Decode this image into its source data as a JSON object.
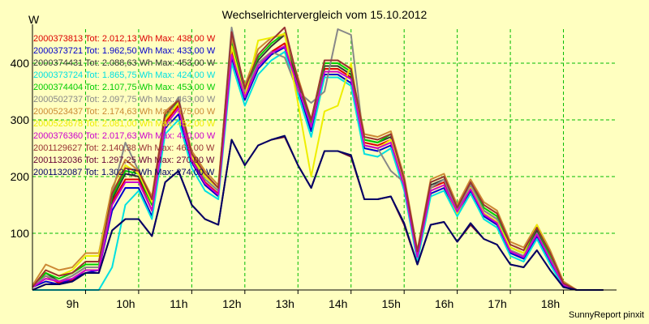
{
  "chart_data": {
    "type": "line",
    "title": "Wechselrichtervergleich vom 15.10.2012",
    "ylabel": "W",
    "footer": "SunnyReport pinxit",
    "ylim": [
      0,
      460
    ],
    "xlim": [
      8.0,
      19.0
    ],
    "yticks": [
      100,
      200,
      300,
      400
    ],
    "xticks": [
      {
        "v": 9,
        "label": "9h"
      },
      {
        "v": 10,
        "label": "10h"
      },
      {
        "v": 11,
        "label": "11h"
      },
      {
        "v": 12,
        "label": "12h"
      },
      {
        "v": 13,
        "label": "13h"
      },
      {
        "v": 14,
        "label": "14h"
      },
      {
        "v": 15,
        "label": "15h"
      },
      {
        "v": 16,
        "label": "16h"
      },
      {
        "v": 17,
        "label": "17h"
      },
      {
        "v": 18,
        "label": "18h"
      }
    ],
    "grid": true,
    "legend_position": "top-left",
    "x": [
      8.0,
      8.25,
      8.5,
      8.75,
      9.0,
      9.25,
      9.5,
      9.75,
      10.0,
      10.25,
      10.5,
      10.75,
      11.0,
      11.25,
      11.5,
      11.75,
      12.0,
      12.25,
      12.5,
      12.75,
      13.0,
      13.25,
      13.5,
      13.75,
      14.0,
      14.25,
      14.5,
      14.75,
      15.0,
      15.25,
      15.5,
      15.75,
      16.0,
      16.25,
      16.5,
      16.75,
      17.0,
      17.25,
      17.5,
      17.75,
      18.0,
      18.25,
      18.5,
      18.75
    ],
    "series": [
      {
        "name": "2000373813",
        "tot": "2.012,13 Wh",
        "max": "438,00 W",
        "color": "#dd0000",
        "values": [
          5,
          25,
          12,
          18,
          35,
          35,
          155,
          195,
          195,
          140,
          295,
          325,
          230,
          190,
          170,
          420,
          345,
          400,
          420,
          435,
          360,
          290,
          390,
          390,
          375,
          260,
          255,
          265,
          185,
          60,
          180,
          190,
          140,
          180,
          135,
          120,
          70,
          60,
          100,
          55,
          10,
          0,
          0,
          0
        ]
      },
      {
        "name": "2000373721",
        "tot": "1.962,50 Wh",
        "max": "433,00 W",
        "color": "#0000cc",
        "values": [
          5,
          15,
          10,
          20,
          30,
          35,
          140,
          180,
          180,
          130,
          285,
          310,
          225,
          185,
          165,
          410,
          335,
          390,
          415,
          428,
          355,
          280,
          380,
          380,
          365,
          250,
          245,
          255,
          180,
          55,
          170,
          180,
          135,
          175,
          130,
          115,
          65,
          55,
          95,
          50,
          8,
          0,
          0,
          0
        ]
      },
      {
        "name": "2000374431",
        "tot": "2.088,63 Wh",
        "max": "453,00 W",
        "color": "#333333",
        "values": [
          5,
          30,
          15,
          25,
          40,
          40,
          160,
          205,
          200,
          150,
          300,
          330,
          235,
          195,
          175,
          435,
          350,
          405,
          430,
          450,
          365,
          290,
          395,
          395,
          380,
          265,
          260,
          270,
          190,
          65,
          185,
          195,
          140,
          185,
          140,
          125,
          75,
          65,
          105,
          60,
          10,
          0,
          0,
          0
        ]
      },
      {
        "name": "2000373724",
        "tot": "1.865,75 Wh",
        "max": "424,00 W",
        "color": "#00e0e0",
        "values": [
          0,
          0,
          0,
          0,
          0,
          0,
          40,
          150,
          175,
          125,
          275,
          300,
          215,
          175,
          160,
          400,
          325,
          380,
          405,
          420,
          345,
          270,
          375,
          375,
          360,
          240,
          235,
          250,
          175,
          50,
          165,
          175,
          130,
          170,
          125,
          110,
          60,
          50,
          90,
          45,
          5,
          0,
          0,
          0
        ]
      },
      {
        "name": "2000374404",
        "tot": "2.107,75 Wh",
        "max": "453,00 W",
        "color": "#00cc00",
        "values": [
          5,
          30,
          20,
          30,
          45,
          45,
          165,
          210,
          205,
          150,
          305,
          335,
          240,
          200,
          180,
          440,
          355,
          410,
          435,
          453,
          370,
          295,
          400,
          400,
          385,
          265,
          260,
          275,
          195,
          65,
          190,
          200,
          145,
          190,
          145,
          130,
          75,
          65,
          110,
          60,
          12,
          0,
          0,
          0
        ]
      },
      {
        "name": "2000502737",
        "tot": "2.097,75 Wh",
        "max": "463,00 W",
        "color": "#888888",
        "values": [
          5,
          25,
          15,
          25,
          40,
          40,
          170,
          260,
          210,
          155,
          300,
          340,
          235,
          195,
          175,
          463,
          350,
          400,
          420,
          410,
          350,
          330,
          350,
          460,
          450,
          255,
          250,
          210,
          190,
          65,
          180,
          195,
          140,
          185,
          140,
          125,
          70,
          60,
          100,
          55,
          10,
          0,
          0,
          0
        ]
      },
      {
        "name": "2000523437",
        "tot": "2.174,63 Wh",
        "max": "475,00 W",
        "color": "#cc8833",
        "values": [
          8,
          45,
          35,
          40,
          65,
          65,
          180,
          230,
          210,
          165,
          315,
          335,
          245,
          210,
          185,
          445,
          360,
          425,
          445,
          450,
          375,
          300,
          405,
          405,
          390,
          275,
          270,
          280,
          200,
          70,
          195,
          205,
          150,
          195,
          155,
          140,
          85,
          75,
          115,
          70,
          15,
          0,
          0,
          0
        ]
      },
      {
        "name": "2000523678",
        "tot": "2.081,00 Wh",
        "max": "452,00 W",
        "color": "#eeee00",
        "values": [
          5,
          35,
          25,
          35,
          60,
          60,
          170,
          220,
          205,
          155,
          300,
          330,
          235,
          200,
          180,
          430,
          340,
          440,
          445,
          452,
          330,
          200,
          315,
          325,
          400,
          255,
          250,
          265,
          185,
          60,
          175,
          185,
          135,
          180,
          135,
          120,
          75,
          65,
          115,
          65,
          12,
          0,
          0,
          0
        ]
      },
      {
        "name": "2000376360",
        "tot": "2.017,63 Wh",
        "max": "430,00 W",
        "color": "#cc00cc",
        "values": [
          5,
          20,
          15,
          20,
          35,
          35,
          150,
          190,
          190,
          140,
          290,
          320,
          228,
          188,
          168,
          415,
          340,
          395,
          418,
          430,
          358,
          288,
          385,
          385,
          372,
          255,
          250,
          260,
          183,
          58,
          175,
          185,
          138,
          178,
          133,
          118,
          68,
          58,
          98,
          53,
          9,
          0,
          0,
          0
        ]
      },
      {
        "name": "2001129627",
        "tot": "2.140,38 Wh",
        "max": "463,00 W",
        "color": "#993333",
        "values": [
          5,
          35,
          25,
          30,
          50,
          50,
          170,
          215,
          210,
          160,
          310,
          335,
          240,
          205,
          180,
          455,
          355,
          415,
          440,
          463,
          370,
          300,
          405,
          405,
          390,
          270,
          265,
          275,
          195,
          68,
          190,
          200,
          145,
          190,
          150,
          135,
          80,
          70,
          110,
          65,
          12,
          0,
          0,
          0
        ]
      },
      {
        "name": "2001132036",
        "tot": "1.297,25 Wh",
        "max": "270,00 W",
        "color": "#660033",
        "values": [
          0,
          10,
          10,
          15,
          30,
          30,
          105,
          125,
          125,
          95,
          190,
          210,
          150,
          125,
          115,
          265,
          220,
          255,
          265,
          270,
          220,
          180,
          245,
          245,
          235,
          160,
          160,
          165,
          115,
          45,
          115,
          120,
          85,
          115,
          90,
          80,
          45,
          40,
          70,
          35,
          5,
          0,
          0,
          0
        ]
      },
      {
        "name": "2001132087",
        "tot": "1.302,13 Wh",
        "max": "274,00 W",
        "color": "#000066",
        "values": [
          0,
          10,
          10,
          15,
          30,
          30,
          105,
          125,
          125,
          95,
          190,
          210,
          150,
          125,
          115,
          265,
          220,
          255,
          265,
          272,
          220,
          180,
          245,
          245,
          238,
          160,
          160,
          165,
          118,
          45,
          115,
          120,
          85,
          118,
          90,
          80,
          45,
          40,
          70,
          35,
          5,
          0,
          0,
          0
        ]
      }
    ]
  }
}
